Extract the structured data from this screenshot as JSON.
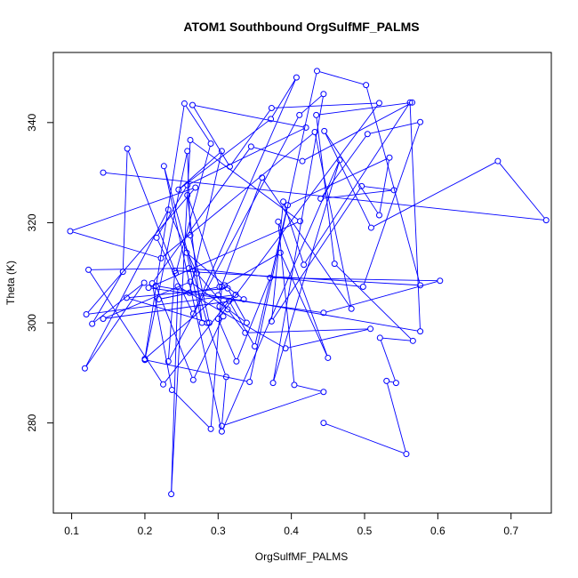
{
  "chart_data": {
    "type": "line",
    "title": "ATOM1 Southbound OrgSulfMF_PALMS",
    "xlabel": "OrgSulfMF_PALMS",
    "ylabel": "Theta (K)",
    "xlim": [
      0.075,
      0.755
    ],
    "ylim": [
      262,
      354
    ],
    "xticks": [
      0.1,
      0.2,
      0.3,
      0.4,
      0.5,
      0.6,
      0.7
    ],
    "xtick_labels": [
      "0.1",
      "0.2",
      "0.3",
      "0.4",
      "0.5",
      "0.6",
      "0.7"
    ],
    "yticks": [
      280,
      300,
      320,
      340
    ],
    "ytick_labels": [
      "280",
      "300",
      "320",
      "340"
    ],
    "grid": false,
    "legend": "none",
    "color": "#0000ff",
    "markers": "open-circle",
    "series": [
      {
        "points": [
          [
            0.444,
            280.0
          ],
          [
            0.557,
            273.8
          ],
          [
            0.53,
            288.4
          ],
          [
            0.543,
            288.0
          ],
          [
            0.521,
            297.0
          ],
          [
            0.566,
            296.4
          ],
          [
            0.459,
            311.8
          ],
          [
            0.434,
            341.5
          ],
          [
            0.565,
            344.0
          ],
          [
            0.415,
            332.3
          ],
          [
            0.345,
            335.2
          ],
          [
            0.21,
            307.9
          ],
          [
            0.237,
            286.6
          ],
          [
            0.29,
            278.8
          ],
          [
            0.305,
            307.2
          ],
          [
            0.385,
            314.0
          ],
          [
            0.45,
            293.0
          ],
          [
            0.382,
            320.2
          ],
          [
            0.404,
            287.6
          ],
          [
            0.444,
            286.2
          ],
          [
            0.305,
            279.4
          ],
          [
            0.311,
            289.2
          ],
          [
            0.285,
            300.0
          ],
          [
            0.226,
            331.3
          ],
          [
            0.305,
            278.3
          ],
          [
            0.466,
            332.5
          ],
          [
            0.375,
            288.0
          ],
          [
            0.444,
            345.7
          ],
          [
            0.411,
            341.5
          ],
          [
            0.232,
            292.3
          ],
          [
            0.241,
            310.4
          ],
          [
            0.576,
            307.5
          ],
          [
            0.502,
            347.5
          ],
          [
            0.435,
            350.3
          ],
          [
            0.343,
            288.2
          ],
          [
            0.2,
            292.6
          ],
          [
            0.2,
            292.6
          ],
          [
            0.258,
            334.3
          ],
          [
            0.262,
            317.5
          ],
          [
            0.288,
            300.0
          ],
          [
            0.175,
            305.0
          ],
          [
            0.313,
            306.9
          ],
          [
            0.339,
            300.0
          ],
          [
            0.262,
            308.2
          ],
          [
            0.143,
            300.8
          ],
          [
            0.335,
            304.7
          ],
          [
            0.309,
            307.5
          ],
          [
            0.257,
            314.0
          ],
          [
            0.278,
            300.0
          ],
          [
            0.258,
            325.5
          ],
          [
            0.302,
            307.2
          ],
          [
            0.219,
            304.7
          ],
          [
            0.261,
            306.0
          ],
          [
            0.305,
            334.3
          ],
          [
            0.246,
            326.6
          ],
          [
            0.372,
            340.7
          ],
          [
            0.407,
            349.0
          ],
          [
            0.266,
            301.8
          ],
          [
            0.216,
            317.0
          ],
          [
            0.258,
            327.5
          ],
          [
            0.42,
            339.0
          ],
          [
            0.265,
            343.5
          ],
          [
            0.316,
            331.2
          ],
          [
            0.373,
            342.9
          ],
          [
            0.52,
            343.9
          ],
          [
            0.3,
            300.8
          ],
          [
            0.325,
            292.3
          ],
          [
            0.371,
            309.0
          ],
          [
            0.603,
            308.4
          ],
          [
            0.444,
            302.0
          ],
          [
            0.205,
            307.0
          ],
          [
            0.412,
            320.3
          ],
          [
            0.262,
            336.5
          ],
          [
            0.236,
            265.8
          ],
          [
            0.245,
            307.3
          ],
          [
            0.392,
            294.9
          ],
          [
            0.508,
            298.8
          ],
          [
            0.337,
            298.0
          ],
          [
            0.313,
            302.7
          ],
          [
            0.271,
            309.9
          ],
          [
            0.232,
            322.6
          ],
          [
            0.118,
            290.9
          ],
          [
            0.199,
            308.0
          ],
          [
            0.128,
            299.8
          ],
          [
            0.17,
            310.2
          ],
          [
            0.176,
            334.8
          ],
          [
            0.242,
            309.9
          ],
          [
            0.29,
            335.8
          ],
          [
            0.254,
            343.8
          ],
          [
            0.2,
            292.8
          ],
          [
            0.3,
            305.5
          ],
          [
            0.36,
            329.0
          ],
          [
            0.482,
            302.8
          ],
          [
            0.432,
            338.1
          ],
          [
            0.222,
            312.9
          ],
          [
            0.098,
            318.3
          ],
          [
            0.269,
            327.0
          ],
          [
            0.12,
            301.7
          ],
          [
            0.324,
            305.6
          ],
          [
            0.302,
            303.3
          ],
          [
            0.307,
            301.3
          ],
          [
            0.266,
            288.6
          ],
          [
            0.215,
            307.4
          ],
          [
            0.576,
            298.3
          ],
          [
            0.562,
            344.0
          ],
          [
            0.417,
            311.6
          ],
          [
            0.389,
            324.2
          ],
          [
            0.373,
            300.3
          ],
          [
            0.496,
            327.3
          ],
          [
            0.54,
            326.5
          ],
          [
            0.44,
            324.8
          ],
          [
            0.504,
            337.7
          ],
          [
            0.576,
            340.1
          ],
          [
            0.498,
            307.2
          ],
          [
            0.26,
            310.9
          ],
          [
            0.123,
            310.6
          ],
          [
            0.225,
            287.7
          ],
          [
            0.315,
            304.4
          ],
          [
            0.35,
            295.3
          ],
          [
            0.395,
            323.5
          ],
          [
            0.534,
            333.0
          ],
          [
            0.52,
            321.5
          ],
          [
            0.445,
            338.3
          ],
          [
            0.509,
            319.0
          ],
          [
            0.682,
            332.3
          ],
          [
            0.748,
            320.5
          ],
          [
            0.143,
            330.0
          ]
        ]
      }
    ]
  }
}
